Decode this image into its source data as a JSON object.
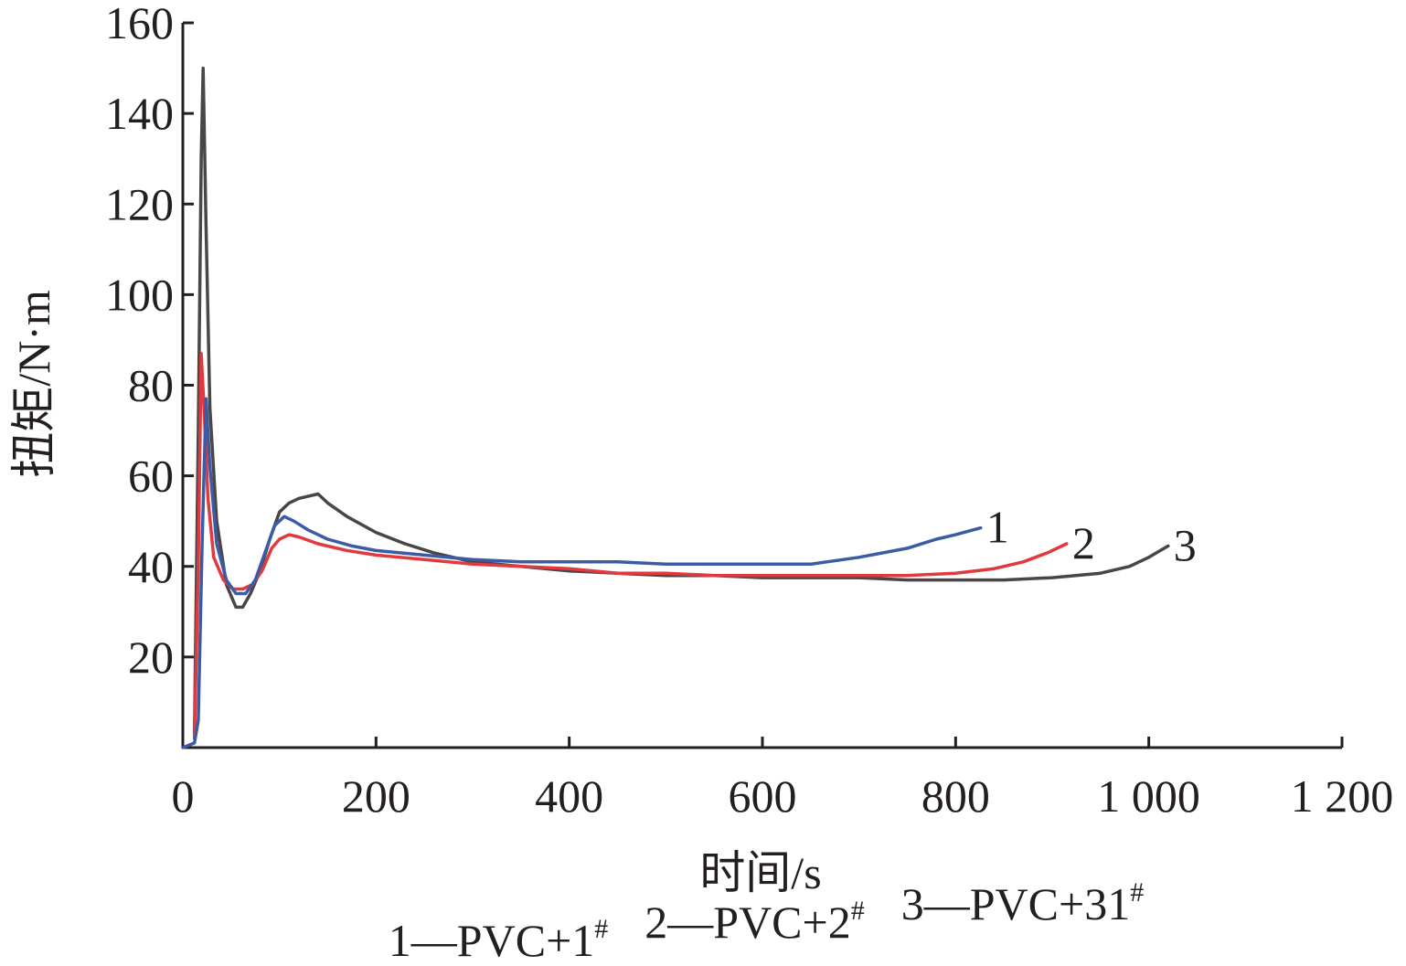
{
  "chart_data": {
    "type": "line",
    "xlabel": "时间/s",
    "ylabel": "扭矩/N·m",
    "xlim": [
      0,
      1200
    ],
    "ylim": [
      0,
      160
    ],
    "x_ticks": [
      0,
      200,
      400,
      600,
      800,
      1000,
      1200
    ],
    "x_tick_labels": [
      "0",
      "200",
      "400",
      "600",
      "800",
      "1 000",
      "1 200"
    ],
    "y_ticks": [
      20,
      40,
      60,
      80,
      100,
      120,
      140,
      160
    ],
    "y_tick_labels": [
      "20",
      "40",
      "60",
      "80",
      "100",
      "120",
      "140",
      "160"
    ],
    "grid": false,
    "legend_text": [
      "1—PVC+1",
      "2—PVC+2",
      "3—PVC+31"
    ],
    "legend_sup": "#",
    "series": [
      {
        "label": "1",
        "color": "#3b5ba5",
        "x": [
          0,
          12,
          16,
          20,
          24,
          28,
          35,
          45,
          55,
          65,
          75,
          85,
          95,
          105,
          115,
          130,
          150,
          175,
          200,
          250,
          300,
          350,
          400,
          450,
          500,
          550,
          600,
          650,
          700,
          750,
          780,
          800,
          826
        ],
        "y": [
          0,
          1,
          6,
          45,
          77,
          62,
          45,
          37,
          34,
          34,
          37,
          43,
          49,
          51,
          50,
          48,
          46,
          44.5,
          43.5,
          42.5,
          41.5,
          41,
          41,
          41,
          40.5,
          40.5,
          40.5,
          40.5,
          42,
          44,
          46,
          47,
          48.5
        ]
      },
      {
        "label": "2",
        "color": "#e03a3e",
        "x": [
          12,
          16,
          19,
          22,
          26,
          32,
          42,
          52,
          62,
          72,
          82,
          92,
          100,
          110,
          120,
          140,
          170,
          200,
          250,
          300,
          350,
          400,
          450,
          500,
          550,
          600,
          650,
          700,
          750,
          800,
          840,
          870,
          895,
          915
        ],
        "y": [
          2,
          40,
          87,
          75,
          55,
          42,
          37,
          35,
          35,
          36,
          39,
          44,
          46,
          47,
          46.5,
          45,
          43.5,
          42.5,
          41.5,
          40.5,
          40,
          39.5,
          38.5,
          38.5,
          38,
          38,
          38,
          38,
          38,
          38.5,
          39.5,
          41,
          43,
          45
        ]
      },
      {
        "label": "3",
        "color": "#4b4546",
        "x": [
          12,
          16,
          19,
          21,
          24,
          28,
          35,
          45,
          55,
          62,
          70,
          80,
          90,
          100,
          110,
          120,
          130,
          140,
          150,
          170,
          200,
          230,
          260,
          300,
          350,
          400,
          450,
          500,
          550,
          600,
          650,
          700,
          750,
          800,
          850,
          900,
          950,
          980,
          1000,
          1020
        ],
        "y": [
          3,
          70,
          130,
          150,
          115,
          75,
          50,
          36,
          31,
          31,
          34,
          39,
          46,
          52,
          54,
          55,
          55.5,
          56,
          54,
          51,
          47.5,
          45,
          43,
          41,
          40,
          39,
          38.5,
          38,
          38,
          37.5,
          37.5,
          37.5,
          37,
          37,
          37,
          37.5,
          38.5,
          40,
          42,
          44.5
        ]
      }
    ]
  }
}
